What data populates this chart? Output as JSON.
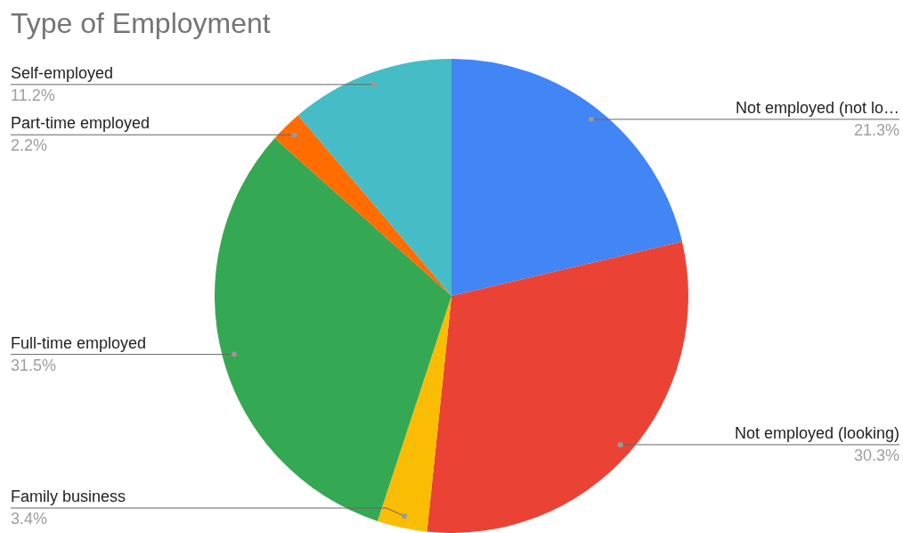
{
  "chart_data": {
    "type": "pie",
    "title": "Type of Employment",
    "categories": [
      "Not employed (not lo…",
      "Not employed (looking)",
      "Family business",
      "Full-time employed",
      "Part-time employed",
      "Self-employed"
    ],
    "values": [
      21.3,
      30.3,
      3.4,
      31.5,
      2.2,
      11.2
    ],
    "value_labels": [
      "21.3%",
      "30.3%",
      "3.4%",
      "31.5%",
      "2.2%",
      "11.2%"
    ],
    "colors": [
      "#4285f4",
      "#ea4335",
      "#fbbc04",
      "#34a853",
      "#ff6d01",
      "#46bdc6"
    ],
    "legend": false
  }
}
